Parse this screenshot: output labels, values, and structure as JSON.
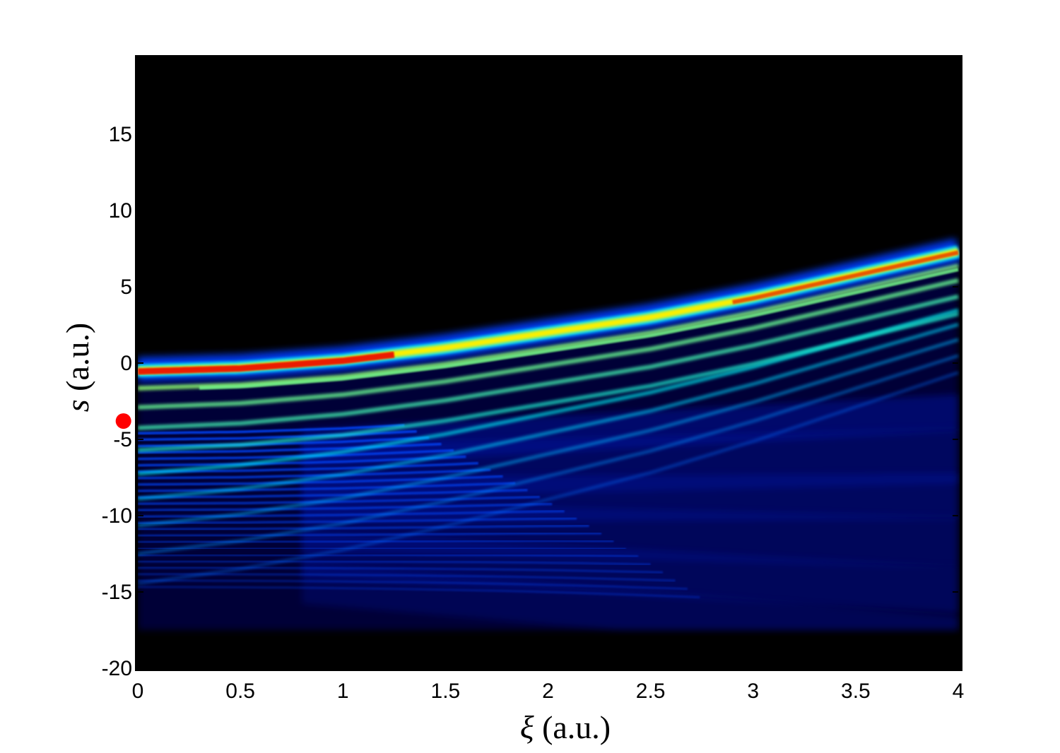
{
  "chart_data": {
    "type": "heatmap",
    "title": "",
    "xlabel": {
      "symbol": "ξ",
      "unit": " (a.u.)"
    },
    "ylabel": {
      "symbol": "s",
      "unit": " (a.u.)"
    },
    "xlim": [
      0,
      4
    ],
    "ylim": [
      -20,
      20
    ],
    "x_ticks": [
      "0",
      "0.5",
      "1",
      "1.5",
      "2",
      "2.5",
      "3",
      "3.5",
      "4"
    ],
    "x_tick_values": [
      0,
      0.5,
      1,
      1.5,
      2,
      2.5,
      3,
      3.5,
      4
    ],
    "y_ticks": [
      "15",
      "10",
      "5",
      "0",
      "-5",
      "-10",
      "-15",
      "-20"
    ],
    "y_tick_values": [
      15,
      10,
      5,
      0,
      -5,
      -10,
      -15,
      -20
    ],
    "colormap": "jet",
    "background_color": "#000000",
    "grid": false,
    "colorbar": false,
    "fringe_envelope": {
      "ridge_xi": [
        0,
        0.5,
        1.0,
        1.5,
        2.0,
        2.5,
        3.0,
        3.5,
        4.0
      ],
      "ridge_s": [
        -0.5,
        -0.3,
        0.2,
        1.0,
        2.0,
        3.0,
        4.3,
        5.8,
        7.3
      ],
      "lower_edge_s": -17.5,
      "peak_intensity_location": {
        "xi": 0.9,
        "s": 0.0
      }
    },
    "marker": {
      "xi": -0.07,
      "s": -3.8,
      "color": "#ff0000",
      "label": ""
    }
  }
}
